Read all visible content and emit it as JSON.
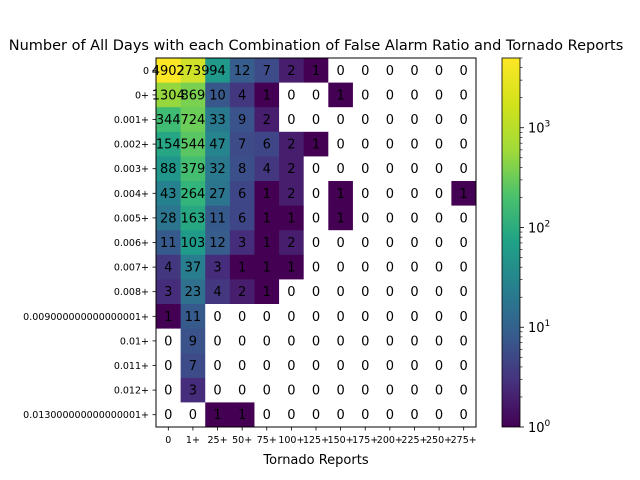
{
  "chart_data": {
    "type": "heatmap",
    "title": "Number of All Days with each Combination of False Alarm Ratio and Tornado Reports",
    "xlabel": "Tornado Reports",
    "ylabel": "",
    "x_categories": [
      "0",
      "1+",
      "25+",
      "50+",
      "75+",
      "100+",
      "125+",
      "150+",
      "175+",
      "200+",
      "225+",
      "250+",
      "275+"
    ],
    "y_categories": [
      "0",
      "0+",
      "0.001+",
      "0.002+",
      "0.003+",
      "0.004+",
      "0.005+",
      "0.006+",
      "0.007+",
      "0.008+",
      "0.009000000000000001+",
      "0.01+",
      "0.011+",
      "0.012+",
      "0.013000000000000001+"
    ],
    "values": [
      [
        4902,
        2739,
        94,
        12,
        7,
        2,
        1,
        0,
        0,
        0,
        0,
        0,
        0
      ],
      [
        1304,
        869,
        10,
        4,
        1,
        0,
        0,
        1,
        0,
        0,
        0,
        0,
        0
      ],
      [
        344,
        724,
        33,
        9,
        2,
        0,
        0,
        0,
        0,
        0,
        0,
        0,
        0
      ],
      [
        154,
        544,
        47,
        7,
        6,
        2,
        1,
        0,
        0,
        0,
        0,
        0,
        0
      ],
      [
        88,
        379,
        32,
        8,
        4,
        2,
        0,
        0,
        0,
        0,
        0,
        0,
        0
      ],
      [
        43,
        264,
        27,
        6,
        1,
        2,
        0,
        1,
        0,
        0,
        0,
        0,
        1
      ],
      [
        28,
        163,
        11,
        6,
        1,
        1,
        0,
        1,
        0,
        0,
        0,
        0,
        0
      ],
      [
        11,
        103,
        12,
        3,
        1,
        2,
        0,
        0,
        0,
        0,
        0,
        0,
        0
      ],
      [
        4,
        37,
        3,
        1,
        1,
        1,
        0,
        0,
        0,
        0,
        0,
        0,
        0
      ],
      [
        3,
        23,
        4,
        2,
        1,
        0,
        0,
        0,
        0,
        0,
        0,
        0,
        0
      ],
      [
        1,
        11,
        0,
        0,
        0,
        0,
        0,
        0,
        0,
        0,
        0,
        0,
        0
      ],
      [
        0,
        9,
        0,
        0,
        0,
        0,
        0,
        0,
        0,
        0,
        0,
        0,
        0
      ],
      [
        0,
        7,
        0,
        0,
        0,
        0,
        0,
        0,
        0,
        0,
        0,
        0,
        0
      ],
      [
        0,
        3,
        0,
        0,
        0,
        0,
        0,
        0,
        0,
        0,
        0,
        0,
        0
      ],
      [
        0,
        0,
        1,
        1,
        0,
        0,
        0,
        0,
        0,
        0,
        0,
        0,
        0
      ]
    ],
    "colormap": "viridis",
    "color_scale": "log",
    "color_range": [
      1,
      5000
    ],
    "zero_color": "#ffffff",
    "colorbar_ticks": [
      {
        "value": 1,
        "base": "10",
        "exp": "0"
      },
      {
        "value": 10,
        "base": "10",
        "exp": "1"
      },
      {
        "value": 100,
        "base": "10",
        "exp": "2"
      },
      {
        "value": 1000,
        "base": "10",
        "exp": "3"
      }
    ]
  }
}
